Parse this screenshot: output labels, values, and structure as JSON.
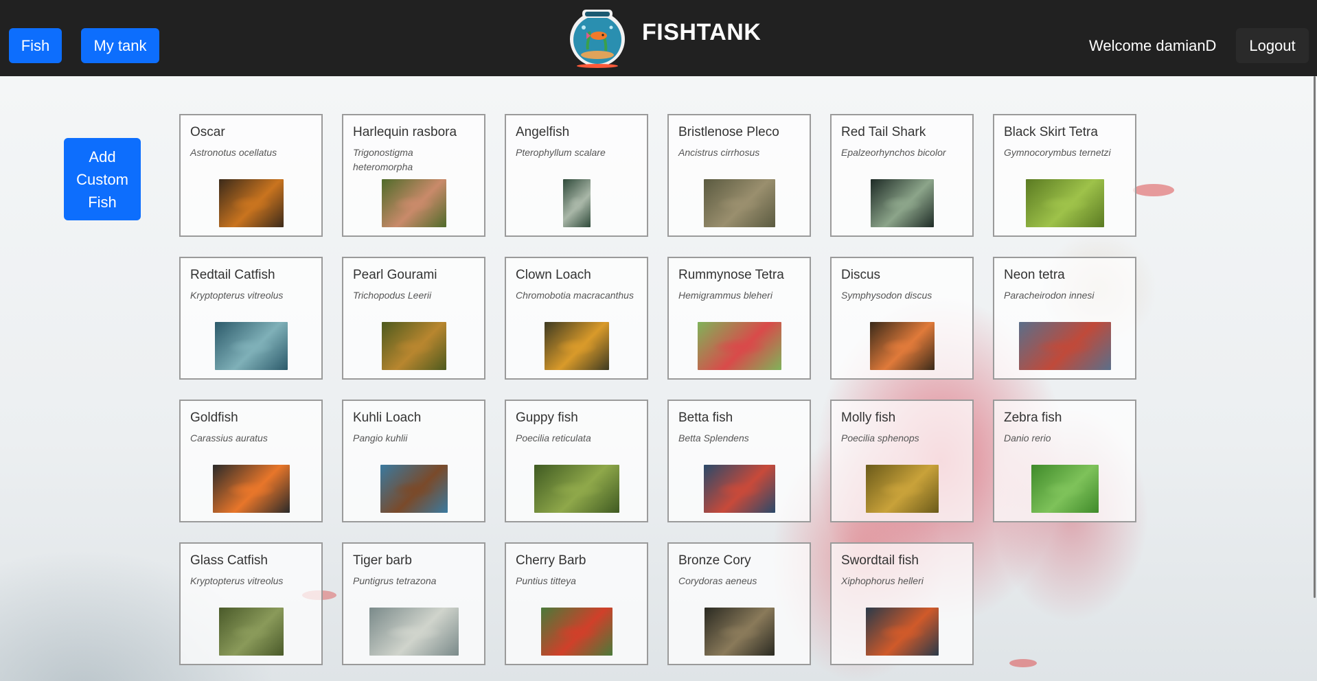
{
  "header": {
    "nav": [
      {
        "label": "Fish"
      },
      {
        "label": "My tank"
      }
    ],
    "brand": "FISHTANK",
    "welcome": "Welcome damianD",
    "logout_label": "Logout"
  },
  "add_custom_label": "Add Custom Fish",
  "fish": [
    {
      "name": "Oscar",
      "scientific": "Astronotus ocellatus",
      "colors": [
        "#3b2a1a",
        "#c9741f"
      ]
    },
    {
      "name": "Harlequin rasbora",
      "scientific": "Trigonostigma heteromorpha",
      "colors": [
        "#4f6b2a",
        "#c98a6a"
      ]
    },
    {
      "name": "Angelfish",
      "scientific": "Pterophyllum scalare",
      "colors": [
        "#2f4a3a",
        "#a9b7a8"
      ]
    },
    {
      "name": "Bristlenose Pleco",
      "scientific": "Ancistrus cirrhosus",
      "colors": [
        "#5a5a40",
        "#9a8f6e"
      ]
    },
    {
      "name": "Red Tail Shark",
      "scientific": "Epalzeorhynchos bicolor",
      "colors": [
        "#1e2b26",
        "#8ca58a"
      ]
    },
    {
      "name": "Black Skirt Tetra",
      "scientific": "Gymnocorymbus ternetzi",
      "colors": [
        "#5a7a22",
        "#9ec24a"
      ]
    },
    {
      "name": "Redtail Catfish",
      "scientific": "Kryptopterus vitreolus",
      "colors": [
        "#2c5a6a",
        "#7fb0b8"
      ]
    },
    {
      "name": "Pearl Gourami",
      "scientific": "Trichopodus Leerii",
      "colors": [
        "#4d5a1e",
        "#b8862f"
      ]
    },
    {
      "name": "Clown Loach",
      "scientific": "Chromobotia macracanthus",
      "colors": [
        "#3d3a22",
        "#d99a2a"
      ]
    },
    {
      "name": "Rummynose Tetra",
      "scientific": "Hemigrammus bleheri",
      "colors": [
        "#7fb35a",
        "#d94a4a"
      ]
    },
    {
      "name": "Discus",
      "scientific": "Symphysodon discus",
      "colors": [
        "#3a2a1a",
        "#e07a3a"
      ]
    },
    {
      "name": "Neon tetra",
      "scientific": "Paracheirodon innesi",
      "colors": [
        "#5a6f8a",
        "#c04a3a"
      ]
    },
    {
      "name": "Goldfish",
      "scientific": "Carassius auratus",
      "colors": [
        "#2a2a2a",
        "#e8762a"
      ]
    },
    {
      "name": "Kuhli Loach",
      "scientific": "Pangio kuhlii",
      "colors": [
        "#3a7aa0",
        "#7a4a2a"
      ]
    },
    {
      "name": "Guppy fish",
      "scientific": "Poecilia reticulata",
      "colors": [
        "#3f5a22",
        "#8fa84a"
      ]
    },
    {
      "name": "Betta fish",
      "scientific": "Betta Splendens",
      "colors": [
        "#2a4a6a",
        "#c84a3a"
      ]
    },
    {
      "name": "Molly fish",
      "scientific": "Poecilia sphenops",
      "colors": [
        "#6a5a1a",
        "#c9a23a"
      ]
    },
    {
      "name": "Zebra fish",
      "scientific": "Danio rerio",
      "colors": [
        "#3f8a2a",
        "#7ec25a"
      ]
    },
    {
      "name": "Glass Catfish",
      "scientific": "Kryptopterus vitreolus",
      "colors": [
        "#4a5a2a",
        "#8a9a5a"
      ]
    },
    {
      "name": "Tiger barb",
      "scientific": "Puntigrus tetrazona",
      "colors": [
        "#7a8a8a",
        "#d0d4cc"
      ]
    },
    {
      "name": "Cherry Barb",
      "scientific": "Puntius titteya",
      "colors": [
        "#4a7a3a",
        "#d0402a"
      ]
    },
    {
      "name": "Bronze Cory",
      "scientific": "Corydoras aeneus",
      "colors": [
        "#2a2a22",
        "#8a7a5a"
      ]
    },
    {
      "name": "Swordtail fish",
      "scientific": "Xiphophorus helleri",
      "colors": [
        "#2a3a4a",
        "#d05a2a"
      ]
    }
  ]
}
